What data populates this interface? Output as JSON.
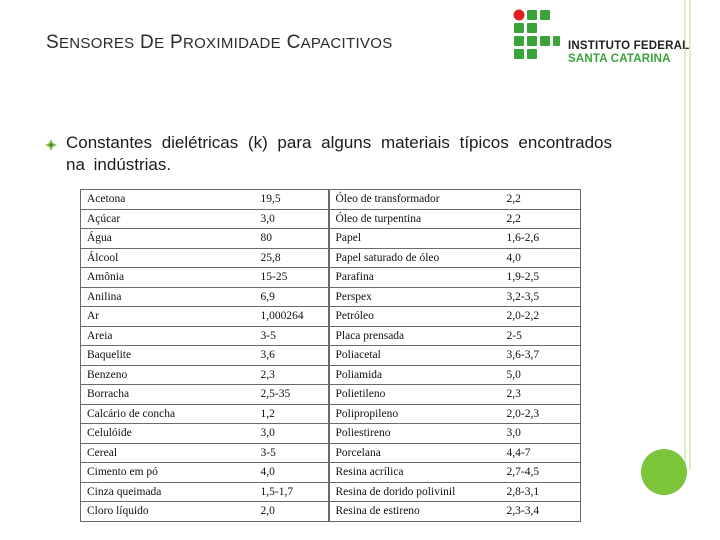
{
  "title": {
    "word1_cap": "S",
    "word1_rest": "ENSORES",
    "word2_cap": "D",
    "word2_rest": "E",
    "word3_cap": "P",
    "word3_rest": "ROXIMIDADE",
    "word4_cap": "C",
    "word4_rest": "APACITIVOS"
  },
  "logo": {
    "line1": "INSTITUTO FEDERAL",
    "line2": "SANTA CATARINA",
    "colors": {
      "green": "#3aa33a",
      "red": "#e02020"
    }
  },
  "bullet": {
    "icon": "diamond-bullet-icon",
    "text": "Constantes dielétricas (k) para alguns materiais típicos encontrados na indústrias."
  },
  "table": {
    "rows": [
      [
        "Acetona",
        "19,5",
        "Óleo de transformador",
        "2,2"
      ],
      [
        "Açúcar",
        "3,0",
        "Óleo de turpentina",
        "2,2"
      ],
      [
        "Água",
        "80",
        "Papel",
        "1,6-2,6"
      ],
      [
        "Álcool",
        "25,8",
        "Papel saturado de óleo",
        "4,0"
      ],
      [
        "Amônia",
        "15-25",
        "Parafina",
        "1,9-2,5"
      ],
      [
        "Anilina",
        "6,9",
        "Perspex",
        "3,2-3,5"
      ],
      [
        "Ar",
        "1,000264",
        "Petróleo",
        "2,0-2,2"
      ],
      [
        "Areia",
        "3-5",
        "Placa prensada",
        "2-5"
      ],
      [
        "Baquelite",
        "3,6",
        "Poliacetal",
        "3,6-3,7"
      ],
      [
        "Benzeno",
        "2,3",
        "Poliamida",
        "5,0"
      ],
      [
        "Borracha",
        "2,5-35",
        "Polietileno",
        "2,3"
      ],
      [
        "Calcário de concha",
        "1,2",
        "Polipropileno",
        "2,0-2,3"
      ],
      [
        "Celulóide",
        "3,0",
        "Poliestireno",
        "3,0"
      ],
      [
        "Cereal",
        "3-5",
        "Porcelana",
        "4,4-7"
      ],
      [
        "Cimento em pó",
        "4,0",
        "Resina acrílica",
        "2,7-4,5"
      ],
      [
        "Cinza queimada",
        "1,5-1,7",
        "Resina de dorido polivinil",
        "2,8-3,1"
      ],
      [
        "Cloro líquido",
        "2,0",
        "Resina de estireno",
        "2,3-3,4"
      ]
    ]
  },
  "decor": {
    "accent_green": "#7cc43a",
    "line_color": "#b9dc93"
  }
}
